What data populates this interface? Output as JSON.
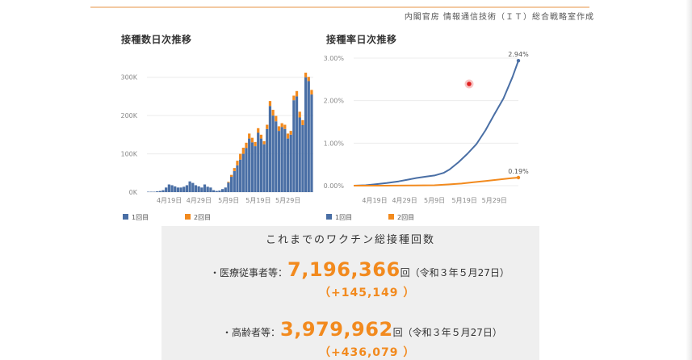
{
  "header": {
    "credit": "内閣官房 情報通信技術（ＩＴ）総合戦略室作成"
  },
  "chart_data": [
    {
      "type": "bar",
      "title": "接種数日次推移",
      "stacked": true,
      "ylim": [
        0,
        350000
      ],
      "yticks": [
        0,
        100000,
        200000,
        300000
      ],
      "ytick_labels": [
        "0K",
        "100K",
        "200K",
        "300K"
      ],
      "x_tick_labels": [
        {
          "index": 7,
          "label": "4月19日"
        },
        {
          "index": 17,
          "label": "4月29日"
        },
        {
          "index": 27,
          "label": "5月9日"
        },
        {
          "index": 37,
          "label": "5月19日"
        },
        {
          "index": 47,
          "label": "5月29日"
        }
      ],
      "series": [
        {
          "name": "1回目",
          "color": "#4a6fa5",
          "values": [
            1000,
            1000,
            1000,
            2000,
            3000,
            5000,
            12000,
            20000,
            18000,
            15000,
            12000,
            12000,
            14000,
            18000,
            28000,
            24000,
            18000,
            15000,
            12000,
            20000,
            14000,
            12000,
            5000,
            3000,
            4000,
            8000,
            12000,
            25000,
            40000,
            55000,
            70000,
            85000,
            100000,
            115000,
            140000,
            130000,
            120000,
            155000,
            140000,
            125000,
            165000,
            225000,
            200000,
            185000,
            160000,
            170000,
            165000,
            140000,
            150000,
            240000,
            250000,
            195000,
            175000,
            300000,
            290000,
            255000
          ]
        },
        {
          "name": "2回目",
          "color": "#f28a1e",
          "values": [
            0,
            0,
            0,
            0,
            0,
            0,
            0,
            0,
            0,
            0,
            0,
            0,
            0,
            0,
            0,
            0,
            0,
            0,
            0,
            0,
            0,
            0,
            0,
            0,
            0,
            0,
            0,
            2000,
            5000,
            8000,
            12000,
            15000,
            16000,
            14000,
            13000,
            12000,
            11000,
            12000,
            10000,
            8000,
            11000,
            13000,
            15000,
            14000,
            12000,
            10000,
            11000,
            13000,
            10000,
            12000,
            14000,
            15000,
            13000,
            12000,
            11000,
            12000
          ]
        }
      ],
      "legend": "bottom-left"
    },
    {
      "type": "line",
      "title": "接種率日次推移",
      "ylim": [
        0,
        3.0
      ],
      "yticks": [
        0,
        1,
        2,
        3
      ],
      "ytick_labels": [
        "0.00%",
        "1.00%",
        "2.00%",
        "3.00%"
      ],
      "x_tick_labels": [
        {
          "index": 7,
          "label": "4月19日"
        },
        {
          "index": 17,
          "label": "4月29日"
        },
        {
          "index": 27,
          "label": "5月9日"
        },
        {
          "index": 37,
          "label": "5月19日"
        },
        {
          "index": 47,
          "label": "5月29日"
        }
      ],
      "x_count": 56,
      "series": [
        {
          "name": "1回目",
          "color": "#4a6fa5",
          "end_label": "2.94%",
          "points": [
            [
              0,
              0
            ],
            [
              4,
              0.01
            ],
            [
              7,
              0.03
            ],
            [
              11,
              0.06
            ],
            [
              15,
              0.1
            ],
            [
              18,
              0.14
            ],
            [
              21,
              0.18
            ],
            [
              24,
              0.21
            ],
            [
              27,
              0.24
            ],
            [
              30,
              0.3
            ],
            [
              32,
              0.38
            ],
            [
              35,
              0.55
            ],
            [
              38,
              0.75
            ],
            [
              41,
              0.98
            ],
            [
              44,
              1.3
            ],
            [
              47,
              1.68
            ],
            [
              50,
              2.05
            ],
            [
              53,
              2.55
            ],
            [
              55,
              2.94
            ]
          ]
        },
        {
          "name": "2回目",
          "color": "#f28a1e",
          "end_label": "0.19%",
          "points": [
            [
              0,
              0
            ],
            [
              10,
              0
            ],
            [
              20,
              0.005
            ],
            [
              27,
              0.01
            ],
            [
              32,
              0.03
            ],
            [
              36,
              0.05
            ],
            [
              40,
              0.08
            ],
            [
              44,
              0.11
            ],
            [
              48,
              0.14
            ],
            [
              52,
              0.17
            ],
            [
              55,
              0.19
            ]
          ]
        }
      ],
      "legend": "bottom-left"
    }
  ],
  "summary": {
    "title": "これまでのワクチン総接種回数",
    "rows": [
      {
        "label": "・医療従事者等：",
        "value": "7,196,366",
        "unit": "回（令和３年５月27日）",
        "increase": "（+145,149 ）"
      },
      {
        "label": "・高齢者等：",
        "value": "3,979,962",
        "unit": "回（令和３年５月27日）",
        "increase": "（+436,079 ）"
      }
    ]
  }
}
